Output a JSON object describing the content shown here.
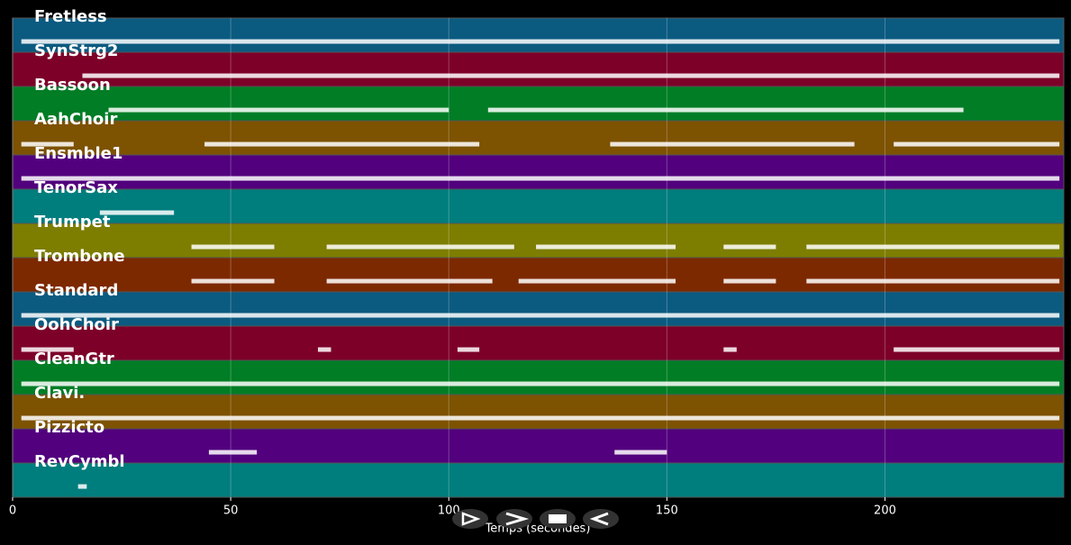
{
  "chart_data": {
    "type": "timeline",
    "xlabel": "Temps (secondes)",
    "xlim": [
      0,
      241
    ],
    "xticks": [
      0,
      50,
      100,
      150,
      200
    ],
    "grid": true,
    "series": [
      {
        "name": "Fretless",
        "color": "#0b5a80",
        "segments": [
          [
            2,
            240
          ]
        ]
      },
      {
        "name": "SynStrg2",
        "color": "#7d0029",
        "segments": [
          [
            16,
            240
          ]
        ]
      },
      {
        "name": "Bassoon",
        "color": "#007d25",
        "segments": [
          [
            22,
            100
          ],
          [
            109,
            218
          ]
        ]
      },
      {
        "name": "AahChoir",
        "color": "#7d5200",
        "segments": [
          [
            2,
            14
          ],
          [
            44,
            107
          ],
          [
            137,
            193
          ],
          [
            202,
            240
          ]
        ]
      },
      {
        "name": "Ensmble1",
        "color": "#52007d",
        "segments": [
          [
            2,
            240
          ]
        ]
      },
      {
        "name": "TenorSax",
        "color": "#007d7d",
        "segments": [
          [
            20,
            37
          ]
        ]
      },
      {
        "name": "Trumpet",
        "color": "#7d7d00",
        "segments": [
          [
            41,
            60
          ],
          [
            72,
            115
          ],
          [
            120,
            152
          ],
          [
            163,
            175
          ],
          [
            182,
            240
          ]
        ]
      },
      {
        "name": "Trombone",
        "color": "#7d2900",
        "segments": [
          [
            41,
            60
          ],
          [
            72,
            110
          ],
          [
            116,
            152
          ],
          [
            163,
            175
          ],
          [
            182,
            240
          ]
        ]
      },
      {
        "name": "Standard",
        "color": "#0b5a80",
        "segments": [
          [
            2,
            240
          ]
        ]
      },
      {
        "name": "OohChoir",
        "color": "#7d0029",
        "segments": [
          [
            2,
            14
          ],
          [
            70,
            73
          ],
          [
            102,
            107
          ],
          [
            163,
            166
          ],
          [
            202,
            240
          ]
        ]
      },
      {
        "name": "CleanGtr",
        "color": "#007d25",
        "segments": [
          [
            2,
            240
          ]
        ]
      },
      {
        "name": "Clavi.",
        "color": "#7d5200",
        "segments": [
          [
            2,
            240
          ]
        ]
      },
      {
        "name": "Pizzicto",
        "color": "#52007d",
        "segments": [
          [
            45,
            56
          ],
          [
            138,
            150
          ]
        ]
      },
      {
        "name": "RevCymbl",
        "color": "#007d7d",
        "segments": [
          [
            15,
            17
          ]
        ]
      }
    ]
  }
}
